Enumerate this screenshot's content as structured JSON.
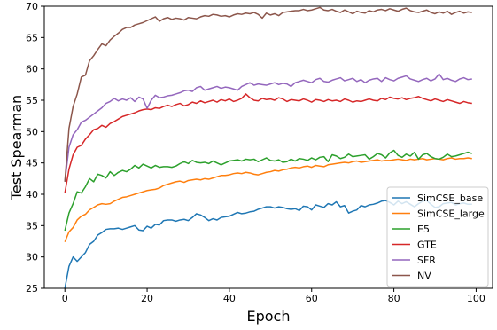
{
  "chart_data": {
    "type": "line",
    "title": "",
    "xlabel": "Epoch",
    "ylabel": "Test Spearman",
    "xlim": [
      -5,
      104
    ],
    "ylim": [
      25,
      70
    ],
    "xticks": [
      0,
      20,
      40,
      60,
      80,
      100
    ],
    "yticks": [
      25,
      30,
      35,
      40,
      45,
      50,
      55,
      60,
      65,
      70
    ],
    "grid": false,
    "legend_position": "lower-right",
    "x": [
      0,
      1,
      2,
      3,
      4,
      5,
      6,
      7,
      8,
      9,
      10,
      11,
      12,
      13,
      14,
      15,
      16,
      17,
      18,
      19,
      20,
      21,
      22,
      23,
      24,
      25,
      26,
      27,
      28,
      29,
      30,
      31,
      32,
      33,
      34,
      35,
      36,
      37,
      38,
      39,
      40,
      41,
      42,
      43,
      44,
      45,
      46,
      47,
      48,
      49,
      50,
      51,
      52,
      53,
      54,
      55,
      56,
      57,
      58,
      59,
      60,
      61,
      62,
      63,
      64,
      65,
      66,
      67,
      68,
      69,
      70,
      71,
      72,
      73,
      74,
      75,
      76,
      77,
      78,
      79,
      80,
      81,
      82,
      83,
      84,
      85,
      86,
      87,
      88,
      89,
      90,
      91,
      92,
      93,
      94,
      95,
      96,
      97,
      98,
      99
    ],
    "series": [
      {
        "name": "SimCSE_base",
        "color": "#1f77b4",
        "values": [
          25.0,
          28.5,
          30.0,
          29.3,
          30.0,
          30.7,
          32.0,
          32.5,
          33.5,
          33.9,
          34.4,
          34.5,
          34.5,
          34.6,
          34.4,
          34.6,
          34.8,
          35.0,
          34.3,
          34.2,
          34.9,
          34.6,
          35.2,
          35.1,
          35.8,
          35.9,
          35.9,
          35.7,
          35.9,
          36.0,
          35.8,
          36.3,
          36.9,
          36.7,
          36.3,
          35.8,
          36.1,
          35.9,
          36.3,
          36.4,
          36.5,
          36.8,
          37.1,
          36.9,
          37.0,
          37.2,
          37.3,
          37.6,
          37.8,
          38.0,
          38.0,
          37.8,
          38.0,
          37.9,
          37.7,
          37.6,
          37.7,
          37.4,
          38.1,
          38.0,
          37.5,
          38.3,
          38.1,
          37.9,
          38.5,
          38.3,
          38.8,
          38.0,
          38.2,
          37.0,
          37.3,
          37.5,
          38.2,
          38.0,
          38.3,
          38.4,
          38.6,
          38.9,
          39.0,
          38.7,
          38.3,
          38.9,
          38.5,
          38.8,
          38.4,
          38.0,
          38.5,
          38.9,
          39.0,
          38.4,
          37.9,
          38.0,
          38.5,
          38.6,
          38.7,
          38.3,
          38.5,
          38.6,
          38.4,
          38.4
        ]
      },
      {
        "name": "SimCSE_large",
        "color": "#ff7f0e",
        "values": [
          32.4,
          34.0,
          34.7,
          35.9,
          36.5,
          36.8,
          37.5,
          37.9,
          38.3,
          38.5,
          38.4,
          38.5,
          38.9,
          39.2,
          39.5,
          39.6,
          39.8,
          40.0,
          40.2,
          40.4,
          40.6,
          40.7,
          40.8,
          41.0,
          41.4,
          41.6,
          41.8,
          42.0,
          42.1,
          41.9,
          42.2,
          42.3,
          42.4,
          42.3,
          42.5,
          42.4,
          42.6,
          42.8,
          43.0,
          43.0,
          43.1,
          43.3,
          43.4,
          43.3,
          43.5,
          43.4,
          43.2,
          43.1,
          43.3,
          43.5,
          43.6,
          43.8,
          43.7,
          43.9,
          44.0,
          44.2,
          44.3,
          44.2,
          44.4,
          44.5,
          44.3,
          44.6,
          44.5,
          44.4,
          44.7,
          44.8,
          44.9,
          45.0,
          45.1,
          45.0,
          45.2,
          45.3,
          45.1,
          45.2,
          45.3,
          45.4,
          45.5,
          45.3,
          45.4,
          45.4,
          45.5,
          45.6,
          45.5,
          45.4,
          45.6,
          45.5,
          45.6,
          45.7,
          45.5,
          45.6,
          45.7,
          45.6,
          45.5,
          45.7,
          45.8,
          45.6,
          45.7,
          45.7,
          45.8,
          45.7
        ]
      },
      {
        "name": "E5",
        "color": "#2ca02c",
        "values": [
          34.2,
          37.0,
          38.5,
          40.4,
          40.2,
          41.2,
          42.5,
          42.0,
          43.2,
          43.0,
          42.6,
          43.6,
          43.0,
          43.5,
          43.8,
          43.6,
          44.0,
          44.6,
          44.2,
          44.8,
          44.5,
          44.2,
          44.6,
          44.3,
          44.4,
          44.4,
          44.3,
          44.5,
          44.9,
          45.2,
          44.9,
          45.4,
          45.1,
          45.0,
          45.1,
          44.9,
          45.3,
          45.0,
          44.7,
          45.0,
          45.3,
          45.4,
          45.5,
          45.3,
          45.6,
          45.5,
          45.6,
          45.2,
          45.5,
          45.8,
          45.4,
          45.3,
          45.5,
          45.1,
          45.2,
          45.6,
          45.3,
          45.7,
          45.6,
          45.4,
          45.8,
          45.5,
          45.9,
          46.0,
          45.2,
          46.3,
          46.1,
          45.7,
          45.9,
          46.4,
          46.0,
          46.1,
          46.2,
          46.3,
          45.6,
          46.0,
          46.5,
          46.3,
          45.8,
          46.6,
          47.0,
          46.2,
          45.9,
          46.4,
          46.1,
          46.7,
          45.6,
          46.3,
          46.5,
          46.0,
          45.7,
          45.6,
          45.9,
          46.4,
          46.0,
          46.1,
          46.3,
          46.5,
          46.7,
          46.5
        ]
      },
      {
        "name": "GTE",
        "color": "#d62728",
        "values": [
          40.2,
          44.0,
          46.3,
          47.5,
          47.8,
          48.8,
          49.5,
          50.3,
          50.5,
          51.0,
          50.7,
          51.3,
          51.6,
          52.0,
          52.4,
          52.6,
          52.8,
          53.0,
          53.3,
          53.5,
          53.6,
          53.5,
          53.8,
          53.7,
          54.0,
          54.2,
          54.0,
          54.3,
          54.5,
          54.1,
          54.3,
          54.7,
          54.5,
          54.9,
          54.6,
          54.8,
          55.0,
          54.7,
          55.1,
          54.9,
          55.2,
          54.8,
          55.0,
          55.3,
          56.0,
          55.4,
          55.0,
          54.9,
          55.3,
          55.1,
          55.2,
          55.0,
          55.4,
          55.2,
          54.8,
          55.1,
          55.0,
          54.9,
          55.2,
          55.0,
          54.7,
          55.1,
          55.0,
          54.8,
          55.1,
          54.9,
          55.0,
          54.8,
          55.2,
          55.0,
          54.7,
          54.9,
          54.8,
          55.0,
          55.2,
          55.0,
          54.9,
          55.3,
          55.1,
          55.5,
          55.3,
          55.2,
          55.4,
          55.1,
          55.3,
          55.4,
          55.6,
          55.3,
          55.1,
          54.9,
          55.2,
          55.0,
          54.8,
          55.1,
          54.9,
          54.7,
          54.5,
          54.8,
          54.6,
          54.5
        ]
      },
      {
        "name": "SFR",
        "color": "#9467bd",
        "values": [
          42.0,
          47.5,
          49.5,
          50.3,
          51.5,
          51.8,
          52.3,
          52.8,
          53.3,
          53.8,
          54.5,
          54.8,
          55.3,
          54.9,
          55.2,
          55.0,
          55.4,
          54.8,
          55.5,
          55.2,
          53.7,
          55.0,
          55.8,
          55.4,
          55.5,
          55.7,
          55.8,
          56.0,
          56.2,
          56.5,
          56.6,
          56.4,
          57.0,
          57.2,
          56.6,
          56.8,
          57.0,
          57.2,
          56.9,
          57.1,
          57.0,
          56.8,
          56.6,
          57.2,
          57.5,
          57.8,
          57.4,
          57.6,
          57.5,
          57.4,
          57.6,
          57.8,
          57.5,
          57.7,
          57.6,
          57.2,
          57.8,
          58.0,
          58.2,
          58.0,
          57.8,
          58.3,
          58.5,
          58.0,
          57.9,
          58.2,
          58.4,
          58.6,
          58.1,
          58.3,
          58.5,
          58.0,
          58.3,
          57.8,
          58.2,
          58.4,
          58.5,
          58.0,
          58.6,
          58.3,
          58.1,
          58.5,
          58.7,
          58.9,
          58.4,
          58.2,
          58.0,
          58.3,
          58.5,
          58.1,
          58.4,
          59.2,
          58.3,
          58.5,
          58.2,
          58.0,
          58.4,
          58.6,
          58.3,
          58.4
        ]
      },
      {
        "name": "NV",
        "color": "#8c564b",
        "values": [
          42.0,
          50.5,
          54.0,
          56.0,
          58.7,
          59.0,
          61.3,
          62.1,
          63.1,
          64.0,
          63.7,
          64.6,
          65.2,
          65.7,
          66.3,
          66.6,
          66.6,
          67.0,
          67.2,
          67.4,
          67.7,
          68.0,
          68.3,
          67.6,
          68.0,
          68.2,
          67.9,
          68.1,
          68.0,
          67.8,
          68.2,
          68.1,
          68.0,
          68.3,
          68.5,
          68.4,
          68.7,
          68.6,
          68.4,
          68.5,
          68.3,
          68.6,
          68.8,
          68.7,
          68.9,
          68.8,
          69.0,
          68.7,
          68.1,
          68.9,
          68.6,
          68.8,
          68.5,
          69.0,
          69.1,
          69.2,
          69.3,
          69.3,
          69.5,
          69.3,
          69.4,
          69.6,
          69.8,
          69.4,
          69.3,
          69.5,
          69.2,
          69.0,
          69.4,
          69.1,
          68.8,
          69.2,
          69.0,
          68.9,
          69.3,
          69.1,
          69.4,
          69.5,
          69.3,
          69.6,
          69.4,
          69.2,
          69.5,
          69.7,
          69.3,
          69.1,
          69.0,
          69.2,
          69.4,
          69.0,
          68.8,
          69.1,
          68.9,
          69.2,
          68.7,
          69.0,
          69.2,
          68.9,
          69.1,
          69.0
        ]
      }
    ]
  }
}
